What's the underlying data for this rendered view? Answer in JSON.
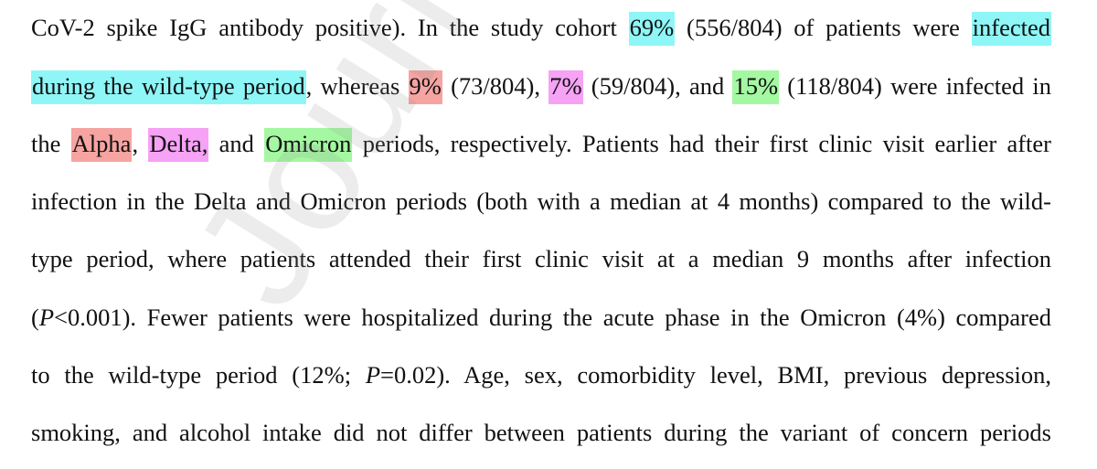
{
  "document": {
    "watermark_text": "Journal Pre-proof",
    "colors": {
      "wild_type_highlight": "#8ff6f7",
      "alpha_highlight": "#f6a4a1",
      "delta_highlight": "#f6a2f5",
      "omicron_highlight": "#a4f8a2"
    },
    "lines": {
      "l1": {
        "a": "CoV-2 spike IgG antibody positive). In the study cohort ",
        "b": "69%",
        "c": " (556/804) of patients were ",
        "d": "infected"
      },
      "l2": {
        "a": "during the wild-type period",
        "b": ", whereas ",
        "c": "9%",
        "d": " (73/804), ",
        "e": "7%",
        "f": " (59/804), and ",
        "g": "15%",
        "h": " (118/804) were infected in"
      },
      "l3": {
        "a": "the ",
        "b": "Alpha",
        "c": ", ",
        "d": "Delta,",
        "e": " and ",
        "f": "Omicron",
        "g": " periods, respectively. Patients had their first clinic visit earlier after"
      },
      "l4": "infection in the Delta and Omicron periods (both with a median at 4 months) compared to the wild-",
      "l5": "type period, where patients attended their first clinic visit at a median 9 months after infection",
      "l6": {
        "a": "(",
        "b": "P",
        "c": "<0.001). Fewer patients were hospitalized during the acute phase in the Omicron (4%) compared"
      },
      "l7": {
        "a": "to the wild-type period (12%; ",
        "b": "P",
        "c": "=0.02). Age, sex, comorbidity level, BMI, previous depression,"
      },
      "l8": "smoking, and alcohol intake did not differ between patients during the variant of concern periods"
    }
  }
}
